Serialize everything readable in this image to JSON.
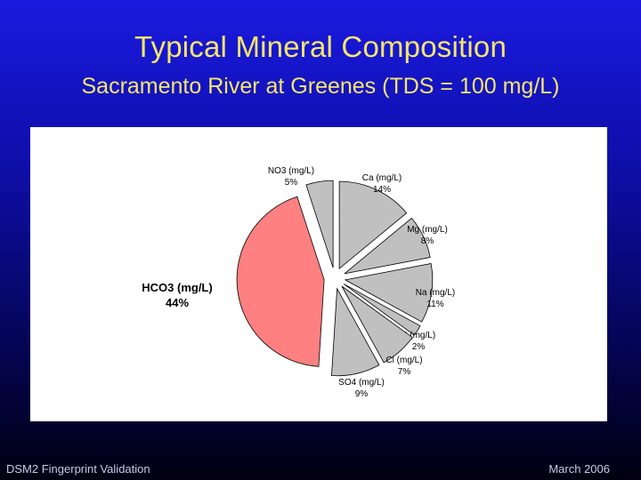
{
  "slide": {
    "title": "Typical Mineral Composition",
    "subtitle": "Sacramento River at Greenes (TDS = 100 mg/L)",
    "footer_left": "DSM2 Fingerprint Validation",
    "footer_right": "March  2006"
  },
  "colors": {
    "accent_title": "#f5e66a",
    "slice_default": "#c0c0c0",
    "slice_highlight": "#ff8080"
  },
  "chart_data": {
    "type": "pie",
    "slices": [
      {
        "name": "Ca (mg/L)",
        "value": 14,
        "label": "14%"
      },
      {
        "name": "Mg (mg/L)",
        "value": 8,
        "label": "8%"
      },
      {
        "name": "Na (mg/L)",
        "value": 11,
        "label": "11%"
      },
      {
        "name": "K (mg/L)",
        "value": 2,
        "label": "2%"
      },
      {
        "name": "Cl (mg/L)",
        "value": 7,
        "label": "7%"
      },
      {
        "name": "SO4 (mg/L)",
        "value": 9,
        "label": "9%"
      },
      {
        "name": "HCO3 (mg/L)",
        "value": 44,
        "label": "44%",
        "highlight": true
      },
      {
        "name": "NO3 (mg/L)",
        "value": 5,
        "label": "5%"
      }
    ],
    "exploded": true,
    "legend": "none"
  }
}
